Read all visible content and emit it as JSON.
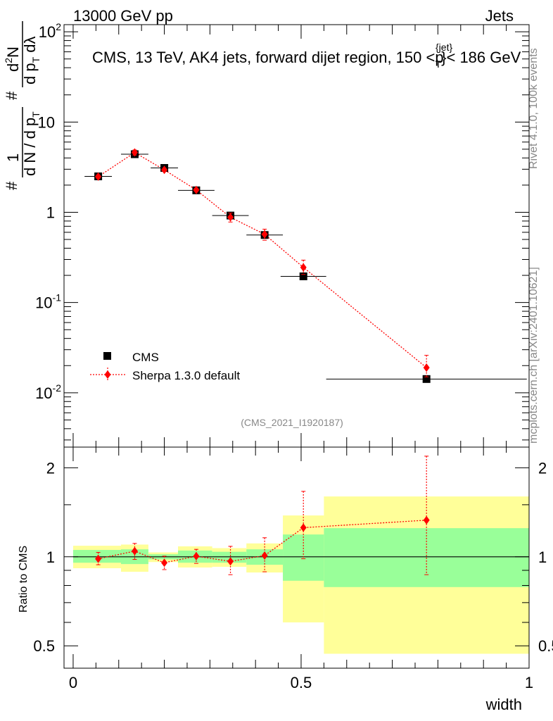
{
  "header": {
    "left": "13000 GeV pp",
    "right": "Jets"
  },
  "side_text": {
    "rivet": "Rivet 4.1.0,  100k events",
    "mcplots": "mcplots.cern.ch [arXiv:2401.10621]"
  },
  "analysis_id": "(CMS_2021_I1920187)",
  "colors": {
    "data": "#000000",
    "mc": "#ff0000",
    "band_inner": "#99ff99",
    "band_outer": "#ffff99"
  },
  "chart_data": [
    {
      "type": "scatter",
      "panel": "main",
      "title": "CMS, 13 TeV, AK4 jets, forward dijet region, 150 <p",
      "title_sup": "{jet}",
      "title_sub": "T",
      "title_end": "}< 186 GeV",
      "ylabel": {
        "a_hash": "#",
        "a_one": "1",
        "a_den": "d N / d p",
        "a_den_sub": "T",
        "b_hash": "#",
        "b_num": "d",
        "b_num_sup": "2",
        "b_num_end": "N",
        "b_den": "d p",
        "b_den_sub": "T",
        "b_den_end": " dλ"
      },
      "yscale": "log",
      "ylim": [
        0.0025,
        120
      ],
      "xlim": [
        -0.02,
        1.0
      ],
      "y_ticks": [
        {
          "value": 0.01,
          "base": "10",
          "exp": "-2"
        },
        {
          "value": 0.1,
          "base": "10",
          "exp": "-1"
        },
        {
          "value": 1,
          "base": "1",
          "exp": ""
        },
        {
          "value": 10,
          "base": "10",
          "exp": ""
        },
        {
          "value": 100,
          "base": "10",
          "exp": "2"
        }
      ],
      "legend_position": "lower-left",
      "series": [
        {
          "name": "CMS",
          "marker": "square",
          "x": [
            0.055,
            0.135,
            0.2,
            0.27,
            0.345,
            0.42,
            0.505,
            0.775
          ],
          "y": [
            2.5,
            4.4,
            3.1,
            1.75,
            0.92,
            0.56,
            0.195,
            0.0142
          ],
          "xerr": [
            0.03,
            0.03,
            0.03,
            0.04,
            0.04,
            0.04,
            0.05,
            0.22
          ]
        },
        {
          "name": "Sherpa 1.3.0 default",
          "marker": "diamond",
          "line": "dotted",
          "x": [
            0.055,
            0.135,
            0.2,
            0.27,
            0.345,
            0.42,
            0.505,
            0.775
          ],
          "y": [
            2.48,
            4.6,
            2.95,
            1.77,
            0.88,
            0.57,
            0.245,
            0.019
          ],
          "yerr_low": [
            0.1,
            0.3,
            0.12,
            0.07,
            0.1,
            0.08,
            0.04,
            0.004
          ],
          "yerr_high": [
            0.1,
            0.3,
            0.12,
            0.07,
            0.1,
            0.08,
            0.05,
            0.007
          ]
        }
      ]
    },
    {
      "type": "scatter",
      "panel": "ratio",
      "xlabel": "width",
      "ylabel": "Ratio to CMS",
      "yscale": "log",
      "ylim": [
        0.42,
        2.35
      ],
      "xlim": [
        -0.02,
        1.0
      ],
      "y_ticks": [
        {
          "value": 0.5,
          "label": "0.5"
        },
        {
          "value": 1,
          "label": "1"
        },
        {
          "value": 2,
          "label": "2"
        }
      ],
      "x_ticks": [
        {
          "value": 0,
          "label": "0"
        },
        {
          "value": 0.5,
          "label": "0.5"
        },
        {
          "value": 1,
          "label": "1"
        }
      ],
      "bands": [
        {
          "x0": 0.0,
          "x1": 0.105,
          "in_lo": 0.955,
          "in_hi": 1.055,
          "out_lo": 0.915,
          "out_hi": 1.09
        },
        {
          "x0": 0.105,
          "x1": 0.165,
          "in_lo": 0.945,
          "in_hi": 1.06,
          "out_lo": 0.89,
          "out_hi": 1.1
        },
        {
          "x0": 0.165,
          "x1": 0.23,
          "in_lo": 0.98,
          "in_hi": 1.02,
          "out_lo": 0.96,
          "out_hi": 1.035
        },
        {
          "x0": 0.23,
          "x1": 0.305,
          "in_lo": 0.955,
          "in_hi": 1.05,
          "out_lo": 0.92,
          "out_hi": 1.085
        },
        {
          "x0": 0.305,
          "x1": 0.38,
          "in_lo": 0.955,
          "in_hi": 1.04,
          "out_lo": 0.925,
          "out_hi": 1.07
        },
        {
          "x0": 0.38,
          "x1": 0.46,
          "in_lo": 0.94,
          "in_hi": 1.06,
          "out_lo": 0.885,
          "out_hi": 1.11
        },
        {
          "x0": 0.46,
          "x1": 0.55,
          "in_lo": 0.83,
          "in_hi": 1.19,
          "out_lo": 0.6,
          "out_hi": 1.38
        },
        {
          "x0": 0.55,
          "x1": 1.0,
          "in_lo": 0.79,
          "in_hi": 1.25,
          "out_lo": 0.47,
          "out_hi": 1.6
        }
      ],
      "series": [
        {
          "name": "Sherpa 1.3.0 default",
          "marker": "diamond",
          "line": "dotted",
          "x": [
            0.055,
            0.135,
            0.2,
            0.27,
            0.345,
            0.42,
            0.505,
            0.775
          ],
          "y": [
            0.985,
            1.045,
            0.955,
            1.005,
            0.965,
            1.01,
            1.255,
            1.33
          ],
          "yerr_low": [
            0.045,
            0.065,
            0.05,
            0.055,
            0.095,
            0.12,
            0.27,
            0.46
          ],
          "yerr_high": [
            0.05,
            0.065,
            0.05,
            0.055,
            0.12,
            0.15,
            0.41,
            0.86
          ]
        }
      ]
    }
  ]
}
